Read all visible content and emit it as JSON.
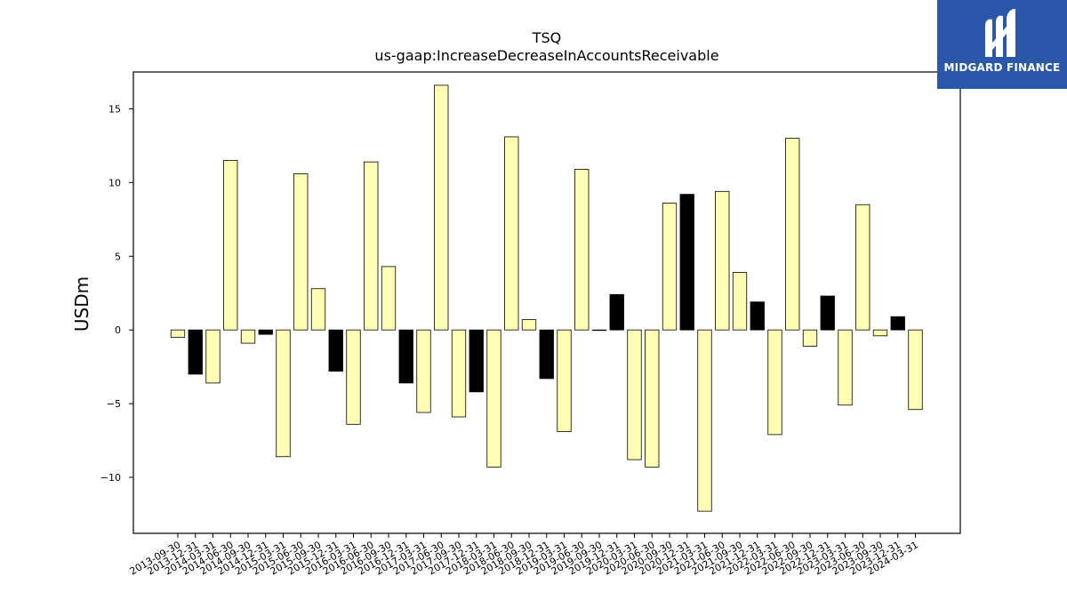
{
  "chart_data": {
    "type": "bar",
    "title": "TSQ",
    "subtitle": "us-gaap:IncreaseDecreaseInAccountsReceivable",
    "xlabel": "",
    "ylabel": "USDm",
    "ylim": [
      -13.8,
      17.5
    ],
    "yticks": [
      -10,
      -5,
      0,
      5,
      10,
      15
    ],
    "ytick_labels": [
      "−10",
      "−5",
      "0",
      "5",
      "10",
      "15"
    ],
    "grid": false,
    "categories": [
      "2013-09-30",
      "2013-12-31",
      "2014-03-31",
      "2014-06-30",
      "2014-09-30",
      "2014-12-31",
      "2015-03-31",
      "2015-06-30",
      "2015-09-30",
      "2015-12-31",
      "2016-03-31",
      "2016-06-30",
      "2016-09-30",
      "2016-12-31",
      "2017-03-31",
      "2017-06-30",
      "2017-09-30",
      "2017-12-31",
      "2018-03-31",
      "2018-06-30",
      "2018-09-30",
      "2018-12-31",
      "2019-03-31",
      "2019-06-30",
      "2019-09-30",
      "2019-12-31",
      "2020-03-31",
      "2020-06-30",
      "2020-09-30",
      "2020-12-31",
      "2021-03-31",
      "2021-06-30",
      "2021-09-30",
      "2021-12-31",
      "2022-03-31",
      "2022-06-30",
      "2022-09-30",
      "2022-12-31",
      "2023-03-31",
      "2023-06-30",
      "2023-09-30",
      "2023-12-31",
      "2024-03-31"
    ],
    "values": [
      -0.5,
      -3.0,
      -3.6,
      11.5,
      -0.9,
      -0.3,
      -8.6,
      10.6,
      2.8,
      -2.8,
      -6.4,
      11.4,
      4.3,
      -3.6,
      -5.6,
      16.6,
      -5.9,
      -4.2,
      -9.3,
      13.1,
      0.7,
      -3.3,
      -6.9,
      10.9,
      0.0,
      2.4,
      -8.8,
      -9.3,
      8.6,
      9.2,
      -12.3,
      9.4,
      3.9,
      1.9,
      -7.1,
      13.0,
      -1.1,
      2.3,
      -5.1,
      8.5,
      -0.4,
      0.9,
      -5.4
    ],
    "bar_colors": [
      "#ffffb3",
      "#000000",
      "#ffffb3",
      "#ffffb3",
      "#ffffb3",
      "#000000",
      "#ffffb3",
      "#ffffb3",
      "#ffffb3",
      "#000000",
      "#ffffb3",
      "#ffffb3",
      "#ffffb3",
      "#000000",
      "#ffffb3",
      "#ffffb3",
      "#ffffb3",
      "#000000",
      "#ffffb3",
      "#ffffb3",
      "#ffffb3",
      "#000000",
      "#ffffb3",
      "#ffffb3",
      "#ffffb3",
      "#000000",
      "#ffffb3",
      "#ffffb3",
      "#ffffb3",
      "#000000",
      "#ffffb3",
      "#ffffb3",
      "#ffffb3",
      "#000000",
      "#ffffb3",
      "#ffffb3",
      "#ffffb3",
      "#000000",
      "#ffffb3",
      "#ffffb3",
      "#ffffb3",
      "#000000",
      "#ffffb3"
    ]
  },
  "logo": {
    "text": "MIDGARD FINANCE",
    "background": "#2a57a8",
    "icon": "midgard-m-logo-icon"
  }
}
